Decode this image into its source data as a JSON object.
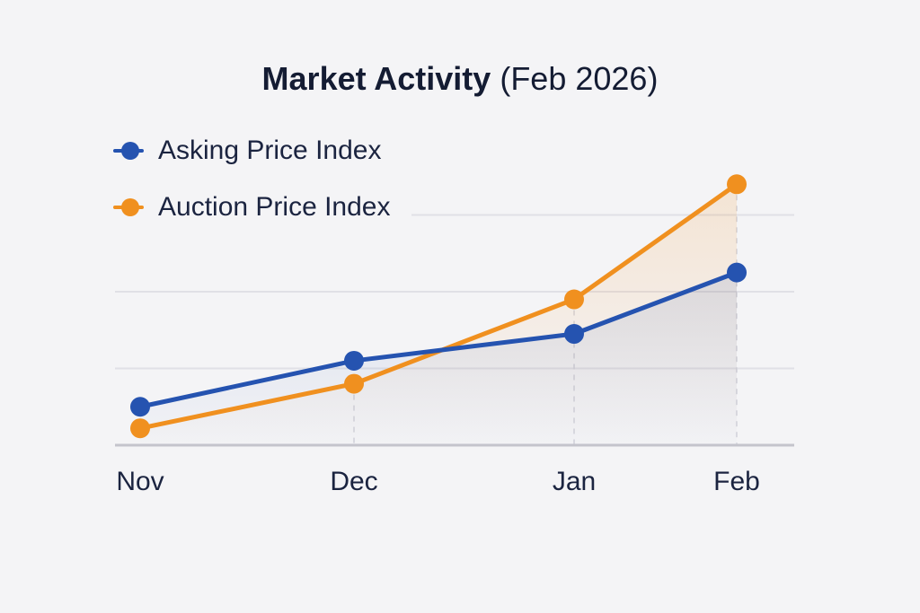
{
  "header": {
    "title_bold": "Market Activity",
    "title_rest": "(Feb 2026)"
  },
  "colors": {
    "background": "#f4f4f6",
    "asking": "#2553b0",
    "auction": "#f0901f",
    "grid": "#e0e0e6",
    "axis": "#c4c4cc"
  },
  "chart_data": {
    "type": "line",
    "title": "Market Activity (Feb 2026)",
    "categories": [
      "Nov",
      "Dec",
      "Jan",
      "Feb"
    ],
    "xlabel": "",
    "ylabel": "",
    "ylim": [
      0,
      3
    ],
    "grid": true,
    "legend_position": "top-left",
    "series": [
      {
        "name": "Asking Price Index",
        "color": "#2553b0",
        "values": [
          0.5,
          1.1,
          1.45,
          2.25
        ]
      },
      {
        "name": "Auction Price Index",
        "color": "#f0901f",
        "values": [
          0.22,
          0.8,
          1.9,
          3.4
        ]
      }
    ]
  }
}
